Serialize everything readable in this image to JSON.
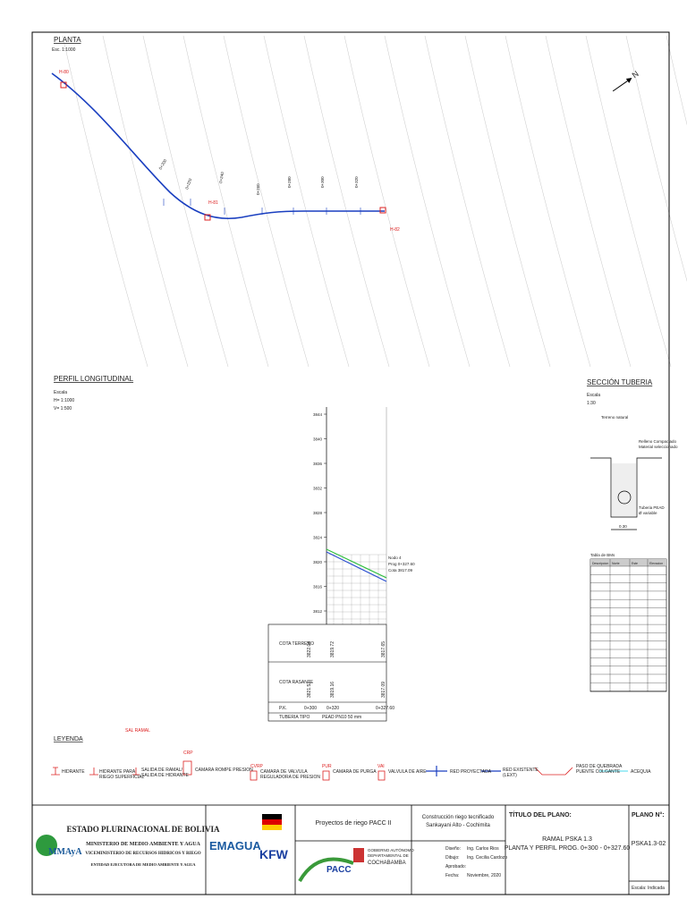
{
  "planta": {
    "title": "PLANTA",
    "scale": "Esc. 1:1000",
    "nodes": [
      "H-80",
      "H-81",
      "H-82"
    ],
    "stations": [
      "0+200",
      "0+220",
      "0+240",
      "0+260",
      "0+280",
      "0+300",
      "0+320"
    ],
    "north": "N"
  },
  "profile": {
    "title": "PERFIL LONGITUDINAL",
    "scale_label": "Escala",
    "h_scale": "H= 1:1000",
    "v_scale": "V= 1:500",
    "elevations": [
      3844,
      3840,
      3836,
      3832,
      3828,
      3824,
      3820,
      3816,
      3812
    ],
    "node_note": [
      "Nodo 4",
      "Prog 0+327.60",
      "Cota 3817.09"
    ],
    "table": {
      "rows": [
        [
          "COTA TERRENO",
          "3822.04",
          "3819.72",
          "3817.65"
        ],
        [
          "COTA RASANTE",
          "3821.53",
          "3819.16",
          "3817.09"
        ],
        [
          "P.K.",
          "0+300",
          "0+320",
          "0+327.60"
        ],
        [
          "TUBERIA TIPO",
          "PEAD PN10 50 mm"
        ]
      ]
    }
  },
  "section": {
    "title": "SECCIÓN TUBERIA",
    "scale_label": "Escala",
    "scale": "1:30",
    "ground": "Terreno natural",
    "fill": [
      "Relleno Compactado",
      "Material seleccionado"
    ],
    "pipe": [
      "Tuberia PEAD",
      "Ø variable"
    ],
    "width": "0.30"
  },
  "bm_table": {
    "title": "Tabla de BMs",
    "headers": [
      "Descripcion",
      "Norte",
      "Este",
      "Elevacion"
    ]
  },
  "legend": {
    "title": "LEYENDA",
    "codes": [
      "SAL RAMAL",
      "CRP",
      "CVRP",
      "PUR",
      "VAI"
    ],
    "items": [
      [
        "HIDRANTE"
      ],
      [
        "HIDRANTE PARA",
        "RIEGO SUPERFICIAL"
      ],
      [
        "SALIDA DE RAMAL/",
        "SALIDA DE HIDRANTE"
      ],
      [
        "CAMARA ROMPE PRESION"
      ],
      [
        "CAMARA DE VALVULA",
        "REGULADORA DE PRESION"
      ],
      [
        "CAMARA DE PURGA"
      ],
      [
        "VALVULA DE AIRE"
      ],
      [
        "RED PROYECTADA"
      ],
      [
        "RED EXISTENTE",
        "(LEXT)"
      ],
      [
        "PASO DE QUEBRADA",
        "PUENTE COLGANTE"
      ],
      [
        "ACEQUIA"
      ]
    ]
  },
  "title_block": {
    "country": "ESTADO PLURINACIONAL DE BOLIVIA",
    "ministry": "MINISTERIO DE MEDIO AMBIENTE Y AGUA",
    "vice_ministry": "VICEMINISTERIO DE RECURSOS HIDRICOS Y RIEGO",
    "entity": "ENTIDAD EJECUTORA DE MEDIO AMBIENTE Y AGUA",
    "logo_mmaya": "MMAyA",
    "logo_emagua": "EMAGUA",
    "logo_kfw": "KFW",
    "logo_pacc": "PACC",
    "program": "Proyectos de riego PACC II",
    "project": [
      "Construcción riego tecnificado",
      "Sankayani Alto - Cochimita"
    ],
    "government": [
      "GOBIERNO AUTÓNOMO",
      "DEPARTAMENTAL DE",
      "COCHABAMBA"
    ],
    "credits": [
      [
        "Diseño:",
        "Ing. Carlos Rios"
      ],
      [
        "Dibujo:",
        "Ing. Cecilia Cardozo"
      ],
      [
        "Aprobado:",
        ""
      ],
      [
        "Fecha:",
        "Noviembre, 2020"
      ]
    ],
    "plan_title_label": "TÍTULO DEL PLANO:",
    "plan_title": [
      "RAMAL PSKA 1.3",
      "PLANTA Y PERFIL PROG. 0+300 - 0+327.60"
    ],
    "plan_number_label": "PLANO N°:",
    "plan_number": "PSKA1.3-02",
    "scale_label": "Escala:",
    "scale": "Indicada"
  }
}
